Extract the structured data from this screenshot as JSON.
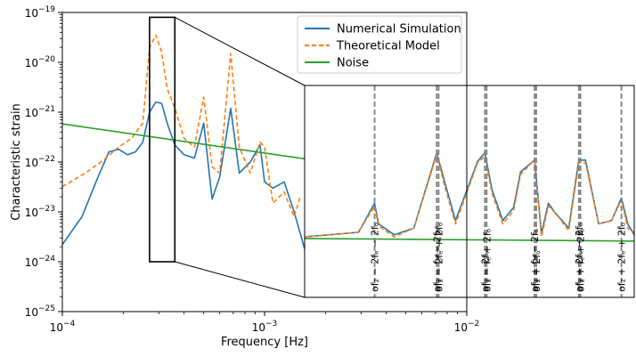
{
  "chart_data": {
    "type": "line",
    "x_scale": "log",
    "y_scale": "log",
    "xlim": [
      0.0001,
      0.01
    ],
    "ylim": [
      1e-25,
      1e-19
    ],
    "xlabel": "Frequency [Hz]",
    "ylabel": "Characteristic strain",
    "x_ticks": [
      {
        "value": 0.0001,
        "label": "10",
        "exp": "−4"
      },
      {
        "value": 0.001,
        "label": "10",
        "exp": "−3"
      },
      {
        "value": 0.01,
        "label": "10",
        "exp": "−2"
      }
    ],
    "y_ticks": [
      {
        "value": 1e-25,
        "label": "10",
        "exp": "−25"
      },
      {
        "value": 1e-24,
        "label": "10",
        "exp": "−24"
      },
      {
        "value": 1e-23,
        "label": "10",
        "exp": "−23"
      },
      {
        "value": 1e-22,
        "label": "10",
        "exp": "−22"
      },
      {
        "value": 1e-21,
        "label": "10",
        "exp": "−21"
      },
      {
        "value": 1e-20,
        "label": "10",
        "exp": "−20"
      },
      {
        "value": 1e-19,
        "label": "10",
        "exp": "−19"
      }
    ],
    "legend_position": "top-right",
    "series": [
      {
        "name": "Numerical Simulation",
        "color": "#1f77b4",
        "style": "solid",
        "points": [
          [
            0.0001,
            2.2e-24
          ],
          [
            0.000125,
            8e-24
          ],
          [
            0.00015,
            5e-23
          ],
          [
            0.00017,
            1.6e-22
          ],
          [
            0.00019,
            1.8e-22
          ],
          [
            0.00021,
            1.4e-22
          ],
          [
            0.00023,
            1.6e-22
          ],
          [
            0.00025,
            2.5e-22
          ],
          [
            0.00027,
            1e-21
          ],
          [
            0.00029,
            1.6e-21
          ],
          [
            0.00031,
            1.5e-21
          ],
          [
            0.00033,
            6e-22
          ],
          [
            0.00036,
            2.2e-22
          ],
          [
            0.0004,
            1.4e-22
          ],
          [
            0.00045,
            1.2e-22
          ],
          [
            0.0005,
            6e-22
          ],
          [
            0.00055,
            1.8e-23
          ],
          [
            0.0006,
            5e-23
          ],
          [
            0.00068,
            1.2e-21
          ],
          [
            0.00075,
            6e-23
          ],
          [
            0.00085,
            1e-22
          ],
          [
            0.00095,
            2.2e-22
          ],
          [
            0.001,
            4e-23
          ],
          [
            0.0011,
            3e-23
          ],
          [
            0.00125,
            4e-23
          ],
          [
            0.0014,
            1e-23
          ],
          [
            0.0016,
            1.5e-24
          ],
          [
            0.0018,
            1.5e-24
          ],
          [
            0.0021,
            3e-25
          ]
        ]
      },
      {
        "name": "Theoretical Model",
        "color": "#ff7f0e",
        "style": "dashed",
        "points": [
          [
            0.0001,
            3.2e-23
          ],
          [
            0.00013,
            6e-23
          ],
          [
            0.00016,
            1.1e-22
          ],
          [
            0.00019,
            2e-22
          ],
          [
            0.00022,
            3e-22
          ],
          [
            0.00025,
            6e-22
          ],
          [
            0.00027,
            2e-20
          ],
          [
            0.00029,
            3.5e-20
          ],
          [
            0.00031,
            1.6e-20
          ],
          [
            0.00033,
            3e-21
          ],
          [
            0.00036,
            1.2e-21
          ],
          [
            0.0004,
            3e-22
          ],
          [
            0.00045,
            2e-22
          ],
          [
            0.0005,
            2e-21
          ],
          [
            0.00055,
            8e-23
          ],
          [
            0.0006,
            6e-23
          ],
          [
            0.00068,
            1.5e-20
          ],
          [
            0.00075,
            2e-22
          ],
          [
            0.00085,
            6e-23
          ],
          [
            0.00095,
            2.5e-22
          ],
          [
            0.001,
            2e-22
          ],
          [
            0.0011,
            1.5e-23
          ],
          [
            0.00125,
            2.5e-23
          ],
          [
            0.0014,
            8e-24
          ],
          [
            0.0015,
            2e-23
          ]
        ]
      },
      {
        "name": "Noise",
        "color": "#2ca02c",
        "style": "solid",
        "points": [
          [
            0.0001,
            5.8e-22
          ],
          [
            0.0016,
            1.15e-22
          ]
        ]
      }
    ],
    "zoom_box": {
      "x": [
        0.00027,
        0.00036
      ],
      "y": [
        1e-24,
        8e-20
      ]
    },
    "inset": {
      "xlim": [
        0.00027,
        0.00036
      ],
      "ylim": [
        1e-24,
        8e-20
      ],
      "series": [
        {
          "name": "Numerical Simulation",
          "color": "#1f77b4",
          "style": "solid",
          "points": [
            [
              0.00027,
              2.5e-23
            ],
            [
              0.000283,
              3.2e-23
            ],
            [
              0.000287,
              1.5e-22
            ],
            [
              0.000288,
              5e-23
            ],
            [
              0.000292,
              2.8e-23
            ],
            [
              0.000297,
              4e-23
            ],
            [
              0.000303,
              2.2e-21
            ],
            [
              0.000305,
              5e-22
            ],
            [
              0.000308,
              6e-23
            ],
            [
              0.000314,
              1.4e-21
            ],
            [
              0.000316,
              2.2e-21
            ],
            [
              0.000318,
              3e-22
            ],
            [
              0.000321,
              6e-23
            ],
            [
              0.000324,
              1.2e-22
            ],
            [
              0.000326,
              8e-22
            ],
            [
              0.00033,
              1.5e-21
            ],
            [
              0.000332,
              3e-23
            ],
            [
              0.000334,
              1.5e-22
            ],
            [
              0.000336,
              9e-23
            ],
            [
              0.00034,
              4e-23
            ],
            [
              0.000343,
              1.5e-21
            ],
            [
              0.000345,
              1.5e-21
            ],
            [
              0.000349,
              5e-23
            ],
            [
              0.000353,
              6e-23
            ],
            [
              0.000356,
              2e-22
            ],
            [
              0.000358,
              5e-23
            ],
            [
              0.00036,
              2.8e-23
            ]
          ]
        },
        {
          "name": "Theoretical Model",
          "color": "#ff7f0e",
          "style": "dashed",
          "points": [
            [
              0.00027,
              2.5e-23
            ],
            [
              0.000283,
              3.2e-23
            ],
            [
              0.000287,
              1.3e-22
            ],
            [
              0.000288,
              4.5e-23
            ],
            [
              0.000292,
              2.5e-23
            ],
            [
              0.000297,
              4e-23
            ],
            [
              0.000303,
              2e-21
            ],
            [
              0.000305,
              4e-22
            ],
            [
              0.000308,
              5e-23
            ],
            [
              0.000314,
              1.3e-21
            ],
            [
              0.000316,
              1.8e-21
            ],
            [
              0.000318,
              2.5e-22
            ],
            [
              0.000321,
              5e-23
            ],
            [
              0.000324,
              1e-22
            ],
            [
              0.000326,
              7e-22
            ],
            [
              0.00033,
              1.5e-21
            ],
            [
              0.000332,
              2.5e-23
            ],
            [
              0.000334,
              1.3e-22
            ],
            [
              0.000336,
              9e-23
            ],
            [
              0.00034,
              3.5e-23
            ],
            [
              0.000343,
              1.3e-21
            ],
            [
              0.000345,
              1.3e-21
            ],
            [
              0.000349,
              5e-23
            ],
            [
              0.000353,
              6e-23
            ],
            [
              0.000356,
              1.8e-22
            ],
            [
              0.000358,
              4e-23
            ],
            [
              0.00036,
              3.2e-23
            ]
          ]
        },
        {
          "name": "Noise",
          "color": "#2ca02c",
          "style": "solid",
          "points": [
            [
              0.00027,
              2.3e-23
            ],
            [
              0.00036,
              2e-23
            ]
          ]
        }
      ],
      "vlines": [
        {
          "x": 0.000287,
          "label": "of₂ − 2fₑ − 2fₒ"
        },
        {
          "x": 0.000303,
          "label": "of₂ − fₑ − 2fₒ"
        },
        {
          "x": 0.0003035,
          "label": "of₂ − 2fₑ + 2fₒ"
        },
        {
          "x": 0.000316,
          "label": "of₂ − 2fₒ"
        },
        {
          "x": 0.0003165,
          "label": "of₂ − fₑ + 2fₒ"
        },
        {
          "x": 0.00033,
          "label": "of₂ + fₑ − 2fₒ"
        },
        {
          "x": 0.0003305,
          "label": "of₂ + 2fₒ"
        },
        {
          "x": 0.000343,
          "label": "of₂ + 2fₑ − 2fₒ"
        },
        {
          "x": 0.0003435,
          "label": "of₂ + fₑ + 2fₒ"
        },
        {
          "x": 0.000356,
          "label": "of₂ + 2fₑ + 2fₒ"
        }
      ]
    }
  }
}
